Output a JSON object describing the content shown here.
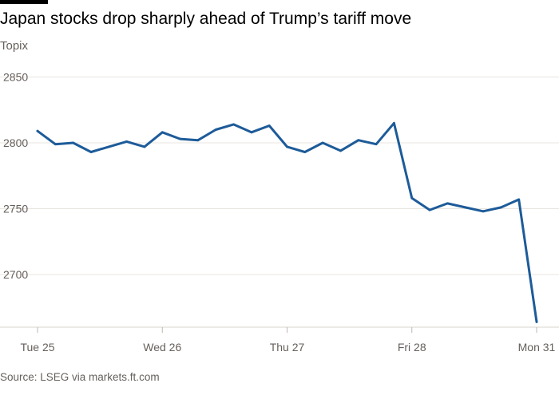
{
  "title": "Japan stocks drop sharply ahead of Trump’s tariff move",
  "subtitle": "Topix",
  "source": "Source: LSEG via markets.ft.com",
  "colors": {
    "line": "#1d5b99",
    "grid": "#e9e5e0",
    "axis": "#d9d4ce",
    "text": "#66605c"
  },
  "chart_data": {
    "type": "line",
    "title": "Japan stocks drop sharply ahead of Trump’s tariff move",
    "ylabel": "",
    "xlabel": "",
    "ylim": [
      2660,
      2860
    ],
    "yticks": [
      2700,
      2750,
      2800,
      2850
    ],
    "grid": true,
    "legend": "none",
    "x_tick_labels": [
      "Tue 25",
      "Wed 26",
      "Thu 27",
      "Fri 28",
      "Mon 31"
    ],
    "x_tick_positions": [
      0,
      7,
      14,
      21,
      28
    ],
    "x": [
      0,
      1,
      2,
      3,
      4,
      5,
      6,
      7,
      8,
      9,
      10,
      11,
      12,
      13,
      14,
      15,
      16,
      17,
      18,
      19,
      20,
      21,
      22,
      23,
      24,
      25,
      26,
      27,
      28
    ],
    "series": [
      {
        "name": "",
        "values": [
          2809,
          2799,
          2800,
          2793,
          2797,
          2801,
          2797,
          2808,
          2803,
          2802,
          2810,
          2814,
          2808,
          2813,
          2797,
          2793,
          2800,
          2794,
          2802,
          2799,
          2815,
          2758,
          2749,
          2754,
          2751,
          2748,
          2751,
          2757,
          2664
        ]
      }
    ]
  }
}
